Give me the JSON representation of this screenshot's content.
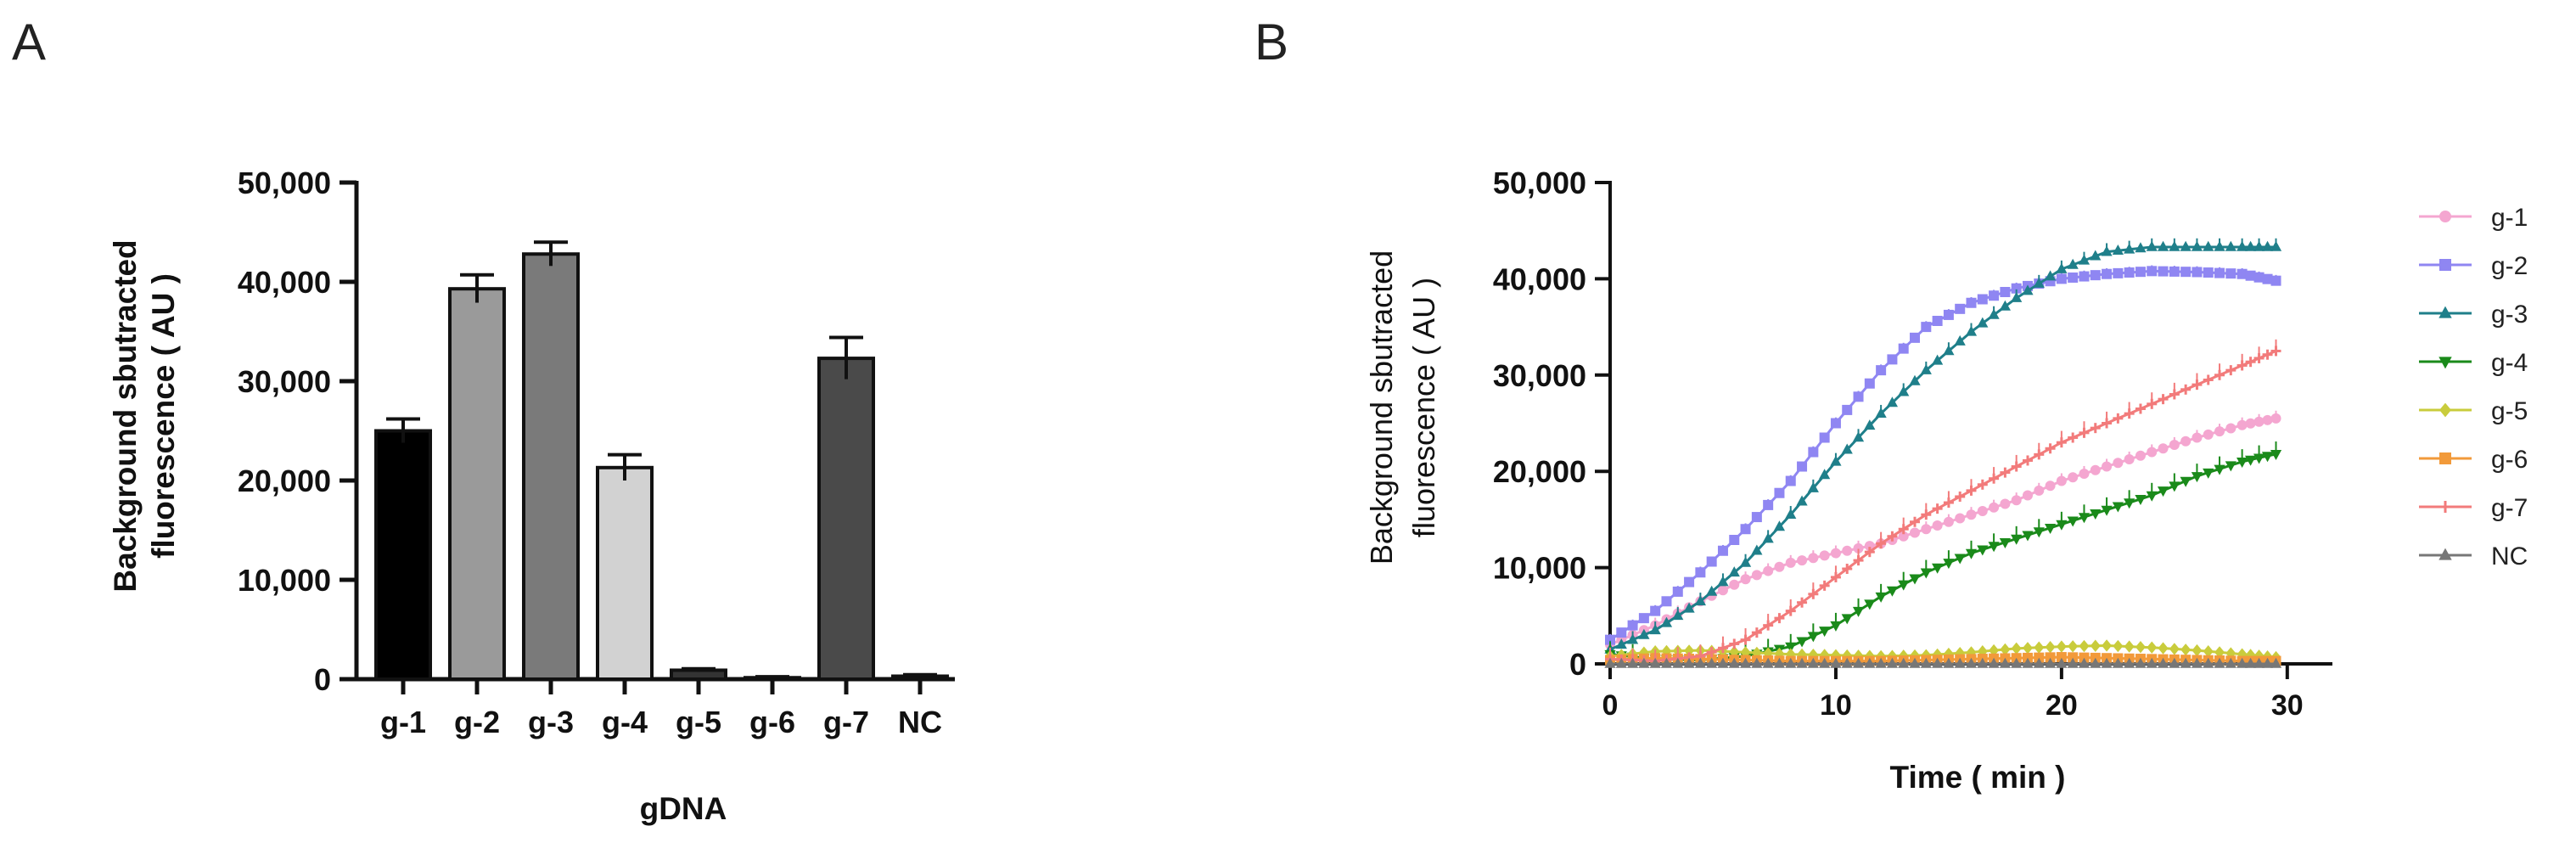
{
  "panels": {
    "a": "A",
    "b": "B"
  },
  "chart_data": [
    {
      "type": "bar",
      "panel": "A",
      "ylabel_lines": [
        "Background sbutracted",
        "fluorescence ( AU )"
      ],
      "xlabel": "gDNA",
      "ylim": [
        0,
        50000
      ],
      "yticks": [
        0,
        10000,
        20000,
        30000,
        40000,
        50000
      ],
      "ytick_labels": [
        "0",
        "10,000",
        "20,000",
        "30,000",
        "40,000",
        "50,000"
      ],
      "categories": [
        "g-1",
        "g-2",
        "g-3",
        "g-4",
        "g-5",
        "g-6",
        "g-7",
        "NC"
      ],
      "values": [
        25000,
        39300,
        42800,
        21300,
        900,
        150,
        32300,
        300
      ],
      "errors": [
        1200,
        1400,
        1200,
        1300,
        150,
        100,
        2100,
        150
      ],
      "colors": [
        "#000000",
        "#9a9a9a",
        "#7a7a7a",
        "#d2d2d2",
        "#333333",
        "#555555",
        "#4a4a4a",
        "#888888"
      ]
    },
    {
      "type": "line",
      "panel": "B",
      "ylabel_lines": [
        "Background sbutracted",
        "fluorescence ( AU )"
      ],
      "xlabel": "Time ( min )",
      "xlim": [
        0,
        32
      ],
      "ylim": [
        0,
        50000
      ],
      "xticks": [
        0,
        10,
        20,
        30
      ],
      "xtick_labels": [
        "0",
        "10",
        "20",
        "30"
      ],
      "yticks": [
        0,
        10000,
        20000,
        30000,
        40000,
        50000
      ],
      "ytick_labels": [
        "0",
        "10,000",
        "20,000",
        "30,000",
        "40,000",
        "50,000"
      ],
      "legend_position": "right",
      "series": [
        {
          "name": "g-1",
          "color": "#f4a6d0",
          "marker": "circle",
          "x": [
            0,
            2,
            4,
            6,
            8,
            10,
            12,
            14,
            16,
            18,
            20,
            22,
            24,
            26,
            28,
            29.5
          ],
          "y": [
            2000,
            4000,
            6500,
            8800,
            10500,
            11500,
            12500,
            14000,
            15500,
            17000,
            19000,
            20500,
            22000,
            23500,
            24800,
            25500
          ],
          "err": 800
        },
        {
          "name": "g-2",
          "color": "#8f86f2",
          "marker": "square",
          "x": [
            0,
            2,
            4,
            6,
            8,
            10,
            12,
            14,
            16,
            18,
            20,
            22,
            24,
            26,
            28,
            29.5
          ],
          "y": [
            2500,
            5500,
            9500,
            14000,
            19000,
            25000,
            30500,
            35000,
            37500,
            39000,
            40000,
            40500,
            40800,
            40700,
            40500,
            39800
          ],
          "err": 600
        },
        {
          "name": "g-3",
          "color": "#1f7f8a",
          "marker": "triangle-up",
          "x": [
            0,
            2,
            4,
            6,
            8,
            10,
            12,
            14,
            16,
            18,
            20,
            22,
            24,
            26,
            28,
            29.5
          ],
          "y": [
            1500,
            3500,
            6500,
            10500,
            15500,
            21000,
            26000,
            30500,
            34500,
            38000,
            41000,
            42800,
            43300,
            43300,
            43300,
            43300
          ],
          "err": 900
        },
        {
          "name": "g-4",
          "color": "#1a8a1a",
          "marker": "triangle-down",
          "x": [
            0,
            2,
            4,
            6,
            8,
            10,
            12,
            14,
            16,
            18,
            20,
            22,
            24,
            26,
            28,
            29.5
          ],
          "y": [
            1000,
            500,
            400,
            800,
            1800,
            4000,
            7000,
            9500,
            11500,
            13000,
            14500,
            16000,
            17500,
            19500,
            21000,
            21800
          ],
          "err": 1300
        },
        {
          "name": "g-5",
          "color": "#c9cc3c",
          "marker": "diamond",
          "x": [
            0,
            2,
            4,
            6,
            8,
            10,
            12,
            14,
            16,
            18,
            20,
            22,
            24,
            26,
            28,
            29.5
          ],
          "y": [
            800,
            1300,
            1400,
            1200,
            1000,
            900,
            800,
            900,
            1200,
            1600,
            1800,
            1900,
            1700,
            1400,
            1000,
            700
          ],
          "err": 300
        },
        {
          "name": "g-6",
          "color": "#f29a3a",
          "marker": "square",
          "x": [
            0,
            2,
            4,
            6,
            8,
            10,
            12,
            14,
            16,
            18,
            20,
            22,
            24,
            26,
            28,
            29.5
          ],
          "y": [
            400,
            600,
            500,
            400,
            300,
            300,
            300,
            400,
            500,
            600,
            700,
            600,
            500,
            400,
            300,
            300
          ],
          "err": 200
        },
        {
          "name": "g-7",
          "color": "#f27b7b",
          "marker": "plus",
          "x": [
            0,
            2,
            4,
            6,
            8,
            10,
            12,
            14,
            16,
            18,
            20,
            22,
            24,
            26,
            28,
            29.5
          ],
          "y": [
            500,
            300,
            800,
            2500,
            5500,
            9000,
            12500,
            15500,
            18000,
            20500,
            23000,
            25000,
            27000,
            29000,
            31000,
            32500
          ],
          "err": 1200
        },
        {
          "name": "NC",
          "color": "#777777",
          "marker": "triangle-up",
          "x": [
            0,
            2,
            4,
            6,
            8,
            10,
            12,
            14,
            16,
            18,
            20,
            22,
            24,
            26,
            28,
            29.5
          ],
          "y": [
            0,
            0,
            0,
            0,
            0,
            0,
            0,
            0,
            0,
            0,
            0,
            0,
            0,
            0,
            0,
            0
          ],
          "err": 100
        }
      ]
    }
  ]
}
